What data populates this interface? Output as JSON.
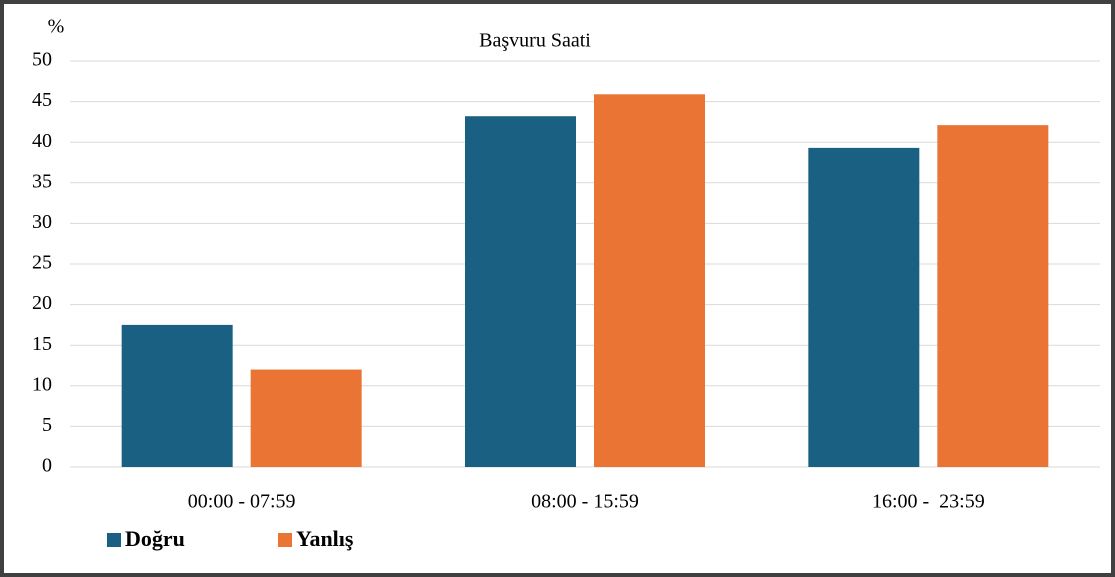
{
  "chart_data": {
    "type": "bar",
    "title": "Başvuru Saati",
    "y_label": "%",
    "categories": [
      "00:00 - 07:59",
      "08:00 - 15:59",
      "16:00 -  23:59"
    ],
    "series": [
      {
        "name": "Doğru",
        "color": "#1a6082",
        "values": [
          17.5,
          43.2,
          39.3
        ]
      },
      {
        "name": "Yanlış",
        "color": "#e97434",
        "values": [
          12.0,
          45.9,
          42.1
        ]
      }
    ],
    "ylim": [
      0,
      50
    ],
    "yticks": [
      0,
      5,
      10,
      15,
      20,
      25,
      30,
      35,
      40,
      45,
      50
    ],
    "grid": true,
    "legend": "bottom-left"
  }
}
